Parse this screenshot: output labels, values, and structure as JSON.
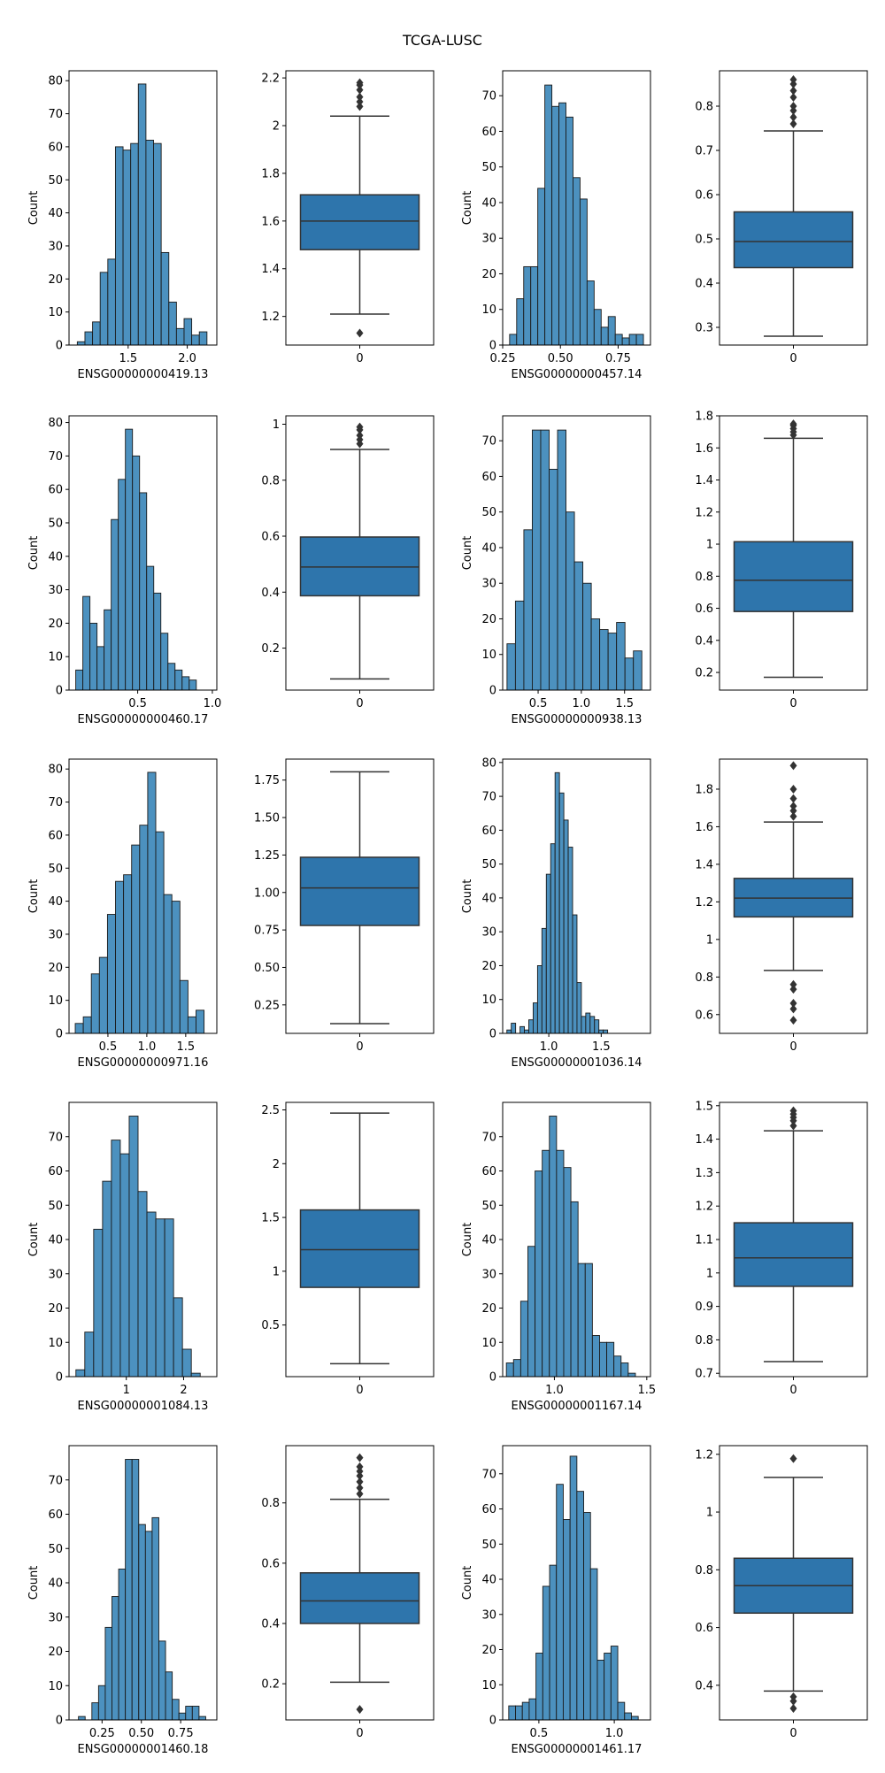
{
  "title": "TCGA-LUSC",
  "colors": {
    "bar": "#4c91bf",
    "box": "#2e75ac",
    "edge": "#1a1a1a",
    "outlier": "#333333"
  },
  "chart_data": [
    {
      "type": "bar",
      "subtype": "histogram",
      "xlabel": "ENSG00000000419.13",
      "ylabel": "Count",
      "xlim": [
        1.0,
        2.25
      ],
      "ylim": [
        0,
        83
      ],
      "xticks": [
        1.5,
        2.0
      ],
      "xticklabels": [
        "1.5",
        "2.0"
      ],
      "yticks": [
        0,
        10,
        20,
        30,
        40,
        50,
        60,
        70,
        80
      ],
      "bin_start": 1.07,
      "bin_width": 0.0645,
      "values": [
        1,
        4,
        7,
        22,
        26,
        60,
        59,
        61,
        79,
        62,
        61,
        28,
        13,
        5,
        8,
        3,
        4
      ]
    },
    {
      "type": "box",
      "xlabel": "",
      "category": "0",
      "ylim": [
        1.08,
        2.23
      ],
      "yticks": [
        1.2,
        1.4,
        1.6,
        1.8,
        2.0,
        2.2
      ],
      "q1": 1.48,
      "median": 1.6,
      "q3": 1.71,
      "whisker_low": 1.21,
      "whisker_high": 2.04,
      "outliers": [
        1.13,
        2.08,
        2.1,
        2.12,
        2.15,
        2.17,
        2.18
      ]
    },
    {
      "type": "bar",
      "subtype": "histogram",
      "xlabel": "ENSG00000000457.14",
      "ylabel": "Count",
      "xlim": [
        0.25,
        0.89
      ],
      "ylim": [
        0,
        77
      ],
      "xticks": [
        0.25,
        0.5,
        0.75
      ],
      "xticklabels": [
        "0.25",
        "0.50",
        "0.75"
      ],
      "yticks": [
        0,
        10,
        20,
        30,
        40,
        50,
        60,
        70
      ],
      "bin_start": 0.28,
      "bin_width": 0.0305,
      "values": [
        3,
        13,
        22,
        22,
        44,
        73,
        67,
        68,
        64,
        47,
        41,
        18,
        10,
        5,
        8,
        3,
        2,
        3,
        3
      ]
    },
    {
      "type": "box",
      "xlabel": "",
      "category": "0",
      "ylim": [
        0.26,
        0.88
      ],
      "yticks": [
        0.3,
        0.4,
        0.5,
        0.6,
        0.7,
        0.8
      ],
      "q1": 0.435,
      "median": 0.494,
      "q3": 0.561,
      "whisker_low": 0.28,
      "whisker_high": 0.744,
      "outliers": [
        0.76,
        0.775,
        0.79,
        0.8,
        0.82,
        0.835,
        0.85,
        0.86
      ]
    },
    {
      "type": "bar",
      "subtype": "histogram",
      "xlabel": "ENSG00000000460.17",
      "ylabel": "Count",
      "xlim": [
        0.04,
        1.03
      ],
      "ylim": [
        0,
        82
      ],
      "xticks": [
        0.5,
        1.0
      ],
      "xticklabels": [
        "0.5",
        "1.0"
      ],
      "yticks": [
        0,
        10,
        20,
        30,
        40,
        50,
        60,
        70,
        80
      ],
      "bin_start": 0.085,
      "bin_width": 0.0475,
      "values": [
        6,
        28,
        20,
        13,
        24,
        51,
        63,
        78,
        70,
        59,
        37,
        29,
        17,
        8,
        6,
        4,
        3
      ]
    },
    {
      "type": "box",
      "xlabel": "",
      "category": "0",
      "ylim": [
        0.05,
        1.03
      ],
      "yticks": [
        0.2,
        0.4,
        0.6,
        0.8,
        1.0
      ],
      "q1": 0.387,
      "median": 0.49,
      "q3": 0.597,
      "whisker_low": 0.09,
      "whisker_high": 0.91,
      "outliers": [
        0.93,
        0.945,
        0.96,
        0.98,
        0.99
      ]
    },
    {
      "type": "bar",
      "subtype": "histogram",
      "xlabel": "ENSG00000000938.13",
      "ylabel": "Count",
      "xlim": [
        0.09,
        1.8
      ],
      "ylim": [
        0,
        77
      ],
      "xticks": [
        0.5,
        1.0,
        1.5
      ],
      "xticklabels": [
        "0.5",
        "1.0",
        "1.5"
      ],
      "yticks": [
        0,
        10,
        20,
        30,
        40,
        50,
        60,
        70
      ],
      "bin_start": 0.14,
      "bin_width": 0.0975,
      "values": [
        13,
        25,
        45,
        73,
        73,
        62,
        73,
        50,
        36,
        30,
        20,
        17,
        16,
        19,
        9,
        11
      ]
    },
    {
      "type": "box",
      "xlabel": "",
      "category": "0",
      "ylim": [
        0.09,
        1.8
      ],
      "yticks": [
        0.2,
        0.4,
        0.6,
        0.8,
        1.0,
        1.2,
        1.4,
        1.6,
        1.8
      ],
      "q1": 0.58,
      "median": 0.775,
      "q3": 1.015,
      "whisker_low": 0.17,
      "whisker_high": 1.66,
      "outliers": [
        1.68,
        1.7,
        1.72,
        1.74,
        1.75
      ]
    },
    {
      "type": "bar",
      "subtype": "histogram",
      "xlabel": "ENSG00000000971.16",
      "ylabel": "Count",
      "xlim": [
        0.0,
        1.9
      ],
      "ylim": [
        0,
        83
      ],
      "xticks": [
        0.5,
        1.0,
        1.5
      ],
      "xticklabels": [
        "0.5",
        "1.0",
        "1.5"
      ],
      "yticks": [
        0,
        10,
        20,
        30,
        40,
        50,
        60,
        70,
        80
      ],
      "bin_start": 0.08,
      "bin_width": 0.1035,
      "values": [
        3,
        5,
        18,
        23,
        36,
        46,
        48,
        57,
        63,
        79,
        61,
        42,
        40,
        16,
        5,
        7
      ]
    },
    {
      "type": "box",
      "xlabel": "",
      "category": "0",
      "ylim": [
        0.06,
        1.89
      ],
      "yticks": [
        0.25,
        0.5,
        0.75,
        1.0,
        1.25,
        1.5,
        1.75
      ],
      "yticklabels": [
        "0.25",
        "0.50",
        "0.75",
        "1.00",
        "1.25",
        "1.50",
        "1.75"
      ],
      "q1": 0.78,
      "median": 1.03,
      "q3": 1.235,
      "whisker_low": 0.125,
      "whisker_high": 1.805,
      "outliers": []
    },
    {
      "type": "bar",
      "subtype": "histogram",
      "xlabel": "ENSG00000001036.14",
      "ylabel": "Count",
      "xlim": [
        0.56,
        1.97
      ],
      "ylim": [
        0,
        81
      ],
      "xticks": [
        1.0,
        1.5
      ],
      "xticklabels": [
        "1.0",
        "1.5"
      ],
      "yticks": [
        0,
        10,
        20,
        30,
        40,
        50,
        60,
        70,
        80
      ],
      "bin_start": 0.6,
      "bin_width": 0.0418,
      "values": [
        1,
        3,
        0,
        2,
        1,
        4,
        9,
        20,
        31,
        47,
        56,
        77,
        71,
        63,
        55,
        35,
        15,
        5,
        6,
        5,
        4,
        1,
        1
      ]
    },
    {
      "type": "box",
      "xlabel": "",
      "category": "0",
      "ylim": [
        0.5,
        1.96
      ],
      "yticks": [
        0.6,
        0.8,
        1.0,
        1.2,
        1.4,
        1.6,
        1.8
      ],
      "q1": 1.12,
      "median": 1.22,
      "q3": 1.325,
      "whisker_low": 0.835,
      "whisker_high": 1.625,
      "outliers": [
        0.57,
        0.63,
        0.66,
        0.735,
        0.76,
        1.655,
        1.685,
        1.71,
        1.75,
        1.8,
        1.925
      ]
    },
    {
      "type": "bar",
      "subtype": "histogram",
      "xlabel": "ENSG00000001084.13",
      "ylabel": "Count",
      "xlim": [
        0.0,
        2.58
      ],
      "ylim": [
        0,
        80
      ],
      "xticks": [
        1.0,
        2.0
      ],
      "xticklabels": [
        "1",
        "2"
      ],
      "yticks": [
        0,
        10,
        20,
        30,
        40,
        50,
        60,
        70
      ],
      "bin_start": 0.12,
      "bin_width": 0.155,
      "values": [
        2,
        13,
        43,
        57,
        69,
        65,
        76,
        54,
        48,
        46,
        46,
        23,
        8,
        1
      ]
    },
    {
      "type": "box",
      "xlabel": "",
      "category": "0",
      "ylim": [
        0.02,
        2.57
      ],
      "yticks": [
        0.5,
        1.0,
        1.5,
        2.0,
        2.5
      ],
      "q1": 0.85,
      "median": 1.2,
      "q3": 1.57,
      "whisker_low": 0.14,
      "whisker_high": 2.47,
      "outliers": []
    },
    {
      "type": "bar",
      "subtype": "histogram",
      "xlabel": "ENSG00000001167.14",
      "ylabel": "Count",
      "xlim": [
        0.72,
        1.52
      ],
      "ylim": [
        0,
        80
      ],
      "xticks": [
        1.0,
        1.5
      ],
      "xticklabels": [
        "1.0",
        "1.5"
      ],
      "yticks": [
        0,
        10,
        20,
        30,
        40,
        50,
        60,
        70
      ],
      "bin_start": 0.74,
      "bin_width": 0.0388,
      "values": [
        4,
        5,
        22,
        38,
        60,
        66,
        76,
        66,
        61,
        51,
        33,
        33,
        12,
        10,
        10,
        6,
        4,
        1
      ]
    },
    {
      "type": "box",
      "xlabel": "",
      "category": "0",
      "ylim": [
        0.69,
        1.51
      ],
      "yticks": [
        0.7,
        0.8,
        0.9,
        1.0,
        1.1,
        1.2,
        1.3,
        1.4,
        1.5
      ],
      "q1": 0.96,
      "median": 1.045,
      "q3": 1.15,
      "whisker_low": 0.735,
      "whisker_high": 1.425,
      "outliers": [
        1.44,
        1.455,
        1.465,
        1.475,
        1.485
      ]
    },
    {
      "type": "bar",
      "subtype": "histogram",
      "xlabel": "ENSG00000001460.18",
      "ylabel": "Count",
      "xlim": [
        0.04,
        0.98
      ],
      "ylim": [
        0,
        80
      ],
      "xticks": [
        0.25,
        0.5,
        0.75
      ],
      "xticklabels": [
        "0.25",
        "0.50",
        "0.75"
      ],
      "yticks": [
        0,
        10,
        20,
        30,
        40,
        50,
        60,
        70
      ],
      "bin_start": 0.1,
      "bin_width": 0.0426,
      "values": [
        1,
        0,
        5,
        10,
        27,
        36,
        44,
        76,
        76,
        57,
        55,
        59,
        23,
        14,
        6,
        2,
        4,
        4,
        1
      ]
    },
    {
      "type": "box",
      "xlabel": "",
      "category": "0",
      "ylim": [
        0.08,
        0.99
      ],
      "yticks": [
        0.2,
        0.4,
        0.6,
        0.8
      ],
      "q1": 0.4,
      "median": 0.475,
      "q3": 0.568,
      "whisker_low": 0.205,
      "whisker_high": 0.812,
      "outliers": [
        0.115,
        0.83,
        0.85,
        0.87,
        0.89,
        0.905,
        0.92,
        0.95
      ]
    },
    {
      "type": "bar",
      "subtype": "histogram",
      "xlabel": "ENSG00000001461.17",
      "ylabel": "Count",
      "xlim": [
        0.26,
        1.24
      ],
      "ylim": [
        0,
        78
      ],
      "xticks": [
        0.5,
        1.0
      ],
      "xticklabels": [
        "0.5",
        "1.0"
      ],
      "yticks": [
        0,
        10,
        20,
        30,
        40,
        50,
        60,
        70
      ],
      "bin_start": 0.3,
      "bin_width": 0.0452,
      "values": [
        4,
        4,
        5,
        6,
        19,
        38,
        44,
        67,
        57,
        75,
        65,
        59,
        43,
        17,
        19,
        21,
        5,
        2,
        1,
        0
      ]
    },
    {
      "type": "box",
      "xlabel": "",
      "category": "0",
      "ylim": [
        0.28,
        1.23
      ],
      "yticks": [
        0.4,
        0.6,
        0.8,
        1.0,
        1.2
      ],
      "q1": 0.65,
      "median": 0.745,
      "q3": 0.84,
      "whisker_low": 0.38,
      "whisker_high": 1.12,
      "outliers": [
        0.32,
        0.345,
        0.36,
        1.185
      ]
    }
  ]
}
